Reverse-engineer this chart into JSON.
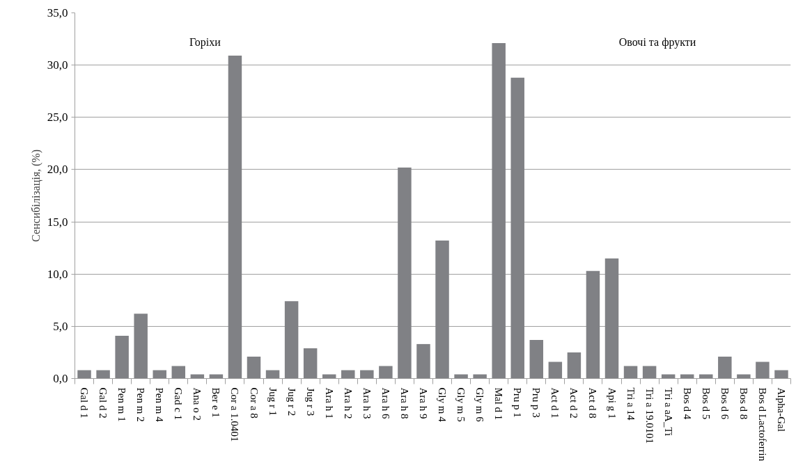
{
  "chart_data": {
    "type": "bar",
    "ylabel": "Сенсибілізація, (%)",
    "categories": [
      "Gal d 1",
      "Gal d 2",
      "Pen m 1",
      "Pen m 2",
      "Pen m 4",
      "Gad c 1",
      "Ana o 2",
      "Ber e 1",
      "Cor a 1.0401",
      "Cor a 8",
      "Jug r 1",
      "Jug r 2",
      "Jug r 3",
      "Ara h 1",
      "Ara h 2",
      "Ara h 3",
      "Ara h 6",
      "Ara h 8",
      "Ara h 9",
      "Gly m 4",
      "Gly m 5",
      "Gly m 6",
      "Mal d 1",
      "Pru p 1",
      "Pru p 3",
      "Act d 1",
      "Act d 2",
      "Act d 8",
      "Api g 1",
      "Tri a 14",
      "Tri a 19.0101",
      "Tri a aA_Ti",
      "Bos d 4",
      "Bos d 5",
      "Bos d 6",
      "Bos d 8",
      "Bos d Lactoferrin",
      "Alpha-Gal"
    ],
    "values": [
      0.8,
      0.8,
      4.1,
      6.2,
      0.8,
      1.2,
      0.4,
      0.4,
      30.9,
      2.1,
      0.8,
      7.4,
      2.9,
      0.4,
      0.8,
      0.8,
      1.2,
      20.2,
      3.3,
      13.2,
      0.4,
      0.4,
      32.1,
      28.8,
      3.7,
      1.6,
      2.5,
      10.3,
      11.5,
      1.2,
      1.2,
      0.4,
      0.4,
      0.4,
      2.1,
      0.4,
      1.6,
      0.8
    ],
    "color": "#808185",
    "ylim": [
      0,
      35
    ],
    "yticks": [
      {
        "value": 0,
        "label": "0,0"
      },
      {
        "value": 5,
        "label": "5,0"
      },
      {
        "value": 10,
        "label": "10,0"
      },
      {
        "value": 15,
        "label": "15,0"
      },
      {
        "value": 20,
        "label": "20,0"
      },
      {
        "value": 25,
        "label": "25,0"
      },
      {
        "value": 30,
        "label": "30,0"
      },
      {
        "value": 35,
        "label": "35,0"
      }
    ],
    "grid": "y",
    "annotations": [
      "Горіхи",
      "Овочі та фрукти"
    ]
  }
}
